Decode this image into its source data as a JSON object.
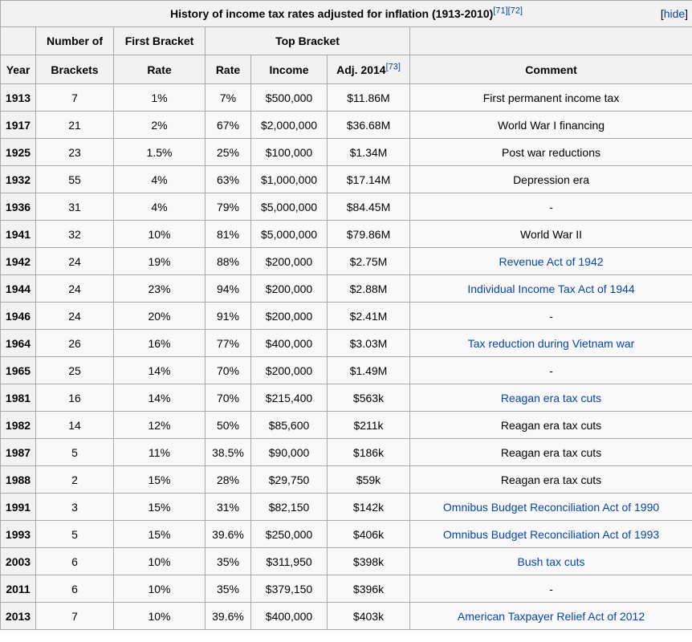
{
  "colors": {
    "link": "#0645ad",
    "header_bg": "#f2f2f2",
    "body_bg": "#f9f9f9",
    "border": "#aaaaaa",
    "text": "#000000"
  },
  "table": {
    "title": {
      "text": "History of income tax rates adjusted for inflation (1913-2010)",
      "ref1": "[71]",
      "ref2": "[72]",
      "hide_prefix": "[",
      "hide_label": "hide",
      "hide_suffix": "]"
    },
    "header": {
      "row1": {
        "number_of": "Number of",
        "first_bracket": "First Bracket",
        "top_bracket": "Top Bracket"
      },
      "row2": {
        "year": "Year",
        "brackets": "Brackets",
        "first_rate": "Rate",
        "top_rate": "Rate",
        "income": "Income",
        "adj2014": "Adj. 2014",
        "adj_ref": "[73]",
        "comment": "Comment"
      }
    },
    "rows": [
      {
        "year": "1913",
        "brackets": "7",
        "first_rate": "1%",
        "top_rate": "7%",
        "income": "$500,000",
        "adj_2014": "$11.86M",
        "comment": "First permanent income tax",
        "comment_is_link": false
      },
      {
        "year": "1917",
        "brackets": "21",
        "first_rate": "2%",
        "top_rate": "67%",
        "income": "$2,000,000",
        "adj_2014": "$36.68M",
        "comment": "World War I financing",
        "comment_is_link": false
      },
      {
        "year": "1925",
        "brackets": "23",
        "first_rate": "1.5%",
        "top_rate": "25%",
        "income": "$100,000",
        "adj_2014": "$1.34M",
        "comment": "Post war reductions",
        "comment_is_link": false
      },
      {
        "year": "1932",
        "brackets": "55",
        "first_rate": "4%",
        "top_rate": "63%",
        "income": "$1,000,000",
        "adj_2014": "$17.14M",
        "comment": "Depression era",
        "comment_is_link": false
      },
      {
        "year": "1936",
        "brackets": "31",
        "first_rate": "4%",
        "top_rate": "79%",
        "income": "$5,000,000",
        "adj_2014": "$84.45M",
        "comment": "-",
        "comment_is_link": false
      },
      {
        "year": "1941",
        "brackets": "32",
        "first_rate": "10%",
        "top_rate": "81%",
        "income": "$5,000,000",
        "adj_2014": "$79.86M",
        "comment": "World War II",
        "comment_is_link": false
      },
      {
        "year": "1942",
        "brackets": "24",
        "first_rate": "19%",
        "top_rate": "88%",
        "income": "$200,000",
        "adj_2014": "$2.75M",
        "comment": "Revenue Act of 1942",
        "comment_is_link": true
      },
      {
        "year": "1944",
        "brackets": "24",
        "first_rate": "23%",
        "top_rate": "94%",
        "income": "$200,000",
        "adj_2014": "$2.88M",
        "comment": "Individual Income Tax Act of 1944",
        "comment_is_link": true
      },
      {
        "year": "1946",
        "brackets": "24",
        "first_rate": "20%",
        "top_rate": "91%",
        "income": "$200,000",
        "adj_2014": "$2.41M",
        "comment": "-",
        "comment_is_link": false
      },
      {
        "year": "1964",
        "brackets": "26",
        "first_rate": "16%",
        "top_rate": "77%",
        "income": "$400,000",
        "adj_2014": "$3.03M",
        "comment": "Tax reduction during Vietnam war",
        "comment_is_link": true
      },
      {
        "year": "1965",
        "brackets": "25",
        "first_rate": "14%",
        "top_rate": "70%",
        "income": "$200,000",
        "adj_2014": "$1.49M",
        "comment": "-",
        "comment_is_link": false
      },
      {
        "year": "1981",
        "brackets": "16",
        "first_rate": "14%",
        "top_rate": "70%",
        "income": "$215,400",
        "adj_2014": "$563k",
        "comment": "Reagan era tax cuts",
        "comment_is_link": true
      },
      {
        "year": "1982",
        "brackets": "14",
        "first_rate": "12%",
        "top_rate": "50%",
        "income": "$85,600",
        "adj_2014": "$211k",
        "comment": "Reagan era tax cuts",
        "comment_is_link": false
      },
      {
        "year": "1987",
        "brackets": "5",
        "first_rate": "11%",
        "top_rate": "38.5%",
        "income": "$90,000",
        "adj_2014": "$186k",
        "comment": "Reagan era tax cuts",
        "comment_is_link": false
      },
      {
        "year": "1988",
        "brackets": "2",
        "first_rate": "15%",
        "top_rate": "28%",
        "income": "$29,750",
        "adj_2014": "$59k",
        "comment": "Reagan era tax cuts",
        "comment_is_link": false
      },
      {
        "year": "1991",
        "brackets": "3",
        "first_rate": "15%",
        "top_rate": "31%",
        "income": "$82,150",
        "adj_2014": "$142k",
        "comment": "Omnibus Budget Reconciliation Act of 1990",
        "comment_is_link": true
      },
      {
        "year": "1993",
        "brackets": "5",
        "first_rate": "15%",
        "top_rate": "39.6%",
        "income": "$250,000",
        "adj_2014": "$406k",
        "comment": "Omnibus Budget Reconciliation Act of 1993",
        "comment_is_link": true
      },
      {
        "year": "2003",
        "brackets": "6",
        "first_rate": "10%",
        "top_rate": "35%",
        "income": "$311,950",
        "adj_2014": "$398k",
        "comment": "Bush tax cuts",
        "comment_is_link": true
      },
      {
        "year": "2011",
        "brackets": "6",
        "first_rate": "10%",
        "top_rate": "35%",
        "income": "$379,150",
        "adj_2014": "$396k",
        "comment": "-",
        "comment_is_link": false
      },
      {
        "year": "2013",
        "brackets": "7",
        "first_rate": "10%",
        "top_rate": "39.6%",
        "income": "$400,000",
        "adj_2014": "$403k",
        "comment": "American Taxpayer Relief Act of 2012",
        "comment_is_link": true
      }
    ]
  }
}
